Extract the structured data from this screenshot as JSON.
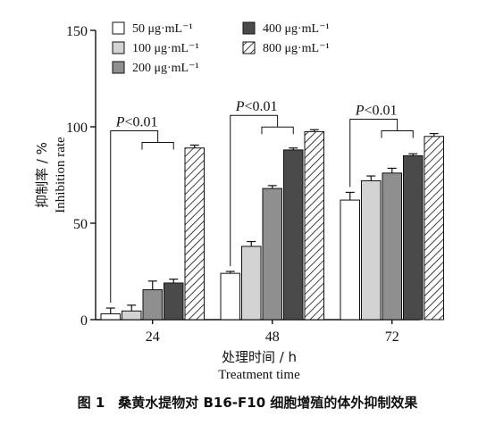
{
  "chart_data": {
    "type": "bar",
    "categories": [
      "24",
      "48",
      "72"
    ],
    "series": [
      {
        "name": "50 μg·mL⁻¹",
        "values": [
          3,
          24,
          62
        ],
        "errors": [
          3,
          1,
          4
        ],
        "fill": "#ffffff"
      },
      {
        "name": "100 μg·mL⁻¹",
        "values": [
          4.5,
          38,
          72
        ],
        "errors": [
          3,
          2.5,
          2.5
        ],
        "fill": "#d3d3d3"
      },
      {
        "name": "200 μg·mL⁻¹",
        "values": [
          15.5,
          68,
          76
        ],
        "errors": [
          4.5,
          1.5,
          2.5
        ],
        "fill": "#8f8f8f"
      },
      {
        "name": "400 μg·mL⁻¹",
        "values": [
          19,
          88,
          85
        ],
        "errors": [
          2,
          1,
          1
        ],
        "fill": "#4a4a4a"
      },
      {
        "name": "800 μg·mL⁻¹",
        "values": [
          89,
          97.5,
          95
        ],
        "errors": [
          1.5,
          1,
          1.5
        ],
        "fill": "hatch"
      }
    ],
    "ylim": [
      0,
      150
    ],
    "yticks": [
      0,
      50,
      100,
      150
    ],
    "ylabel_cn": "抑制率 / %",
    "ylabel_en": "Inhibition rate",
    "xlabel_cn": "处理时间 / h",
    "xlabel_en": "Treatment time",
    "annotations": [
      "P<0.01",
      "P<0.01",
      "P<0.01"
    ],
    "legend_position": "top"
  },
  "caption": "图 1　桑黄水提物对 B16-F10 细胞增殖的体外抑制效果"
}
